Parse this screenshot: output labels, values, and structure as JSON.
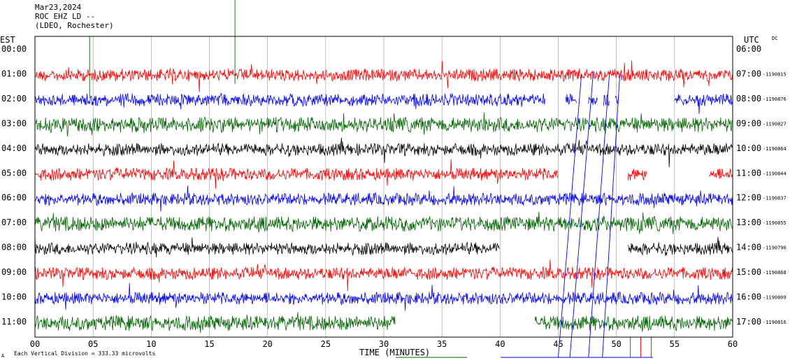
{
  "header": {
    "date": "Mar23,2024",
    "station": "ROC EHZ LD --",
    "network": "(LDEO, Rochester)"
  },
  "labels": {
    "left_zone": "EST",
    "right_zone": "UTC",
    "dc": "DC",
    "xlabel": "TIME (MINUTES)",
    "footer": "Each Vertical Division =  333.33 microvolts",
    "footer_mark": "A"
  },
  "chart_data": {
    "type": "line",
    "title": "",
    "xlabel": "TIME (MINUTES)",
    "xlim": [
      0,
      60
    ],
    "x_ticks": [
      "00",
      "05",
      "10",
      "15",
      "20",
      "25",
      "30",
      "35",
      "40",
      "45",
      "50",
      "55",
      "60"
    ],
    "grid": true,
    "colors": [
      "#ff0000",
      "#0000ff",
      "#006400",
      "#000000"
    ],
    "rows": [
      {
        "est": "00:00",
        "utc": "06:00",
        "value": "",
        "color": "",
        "segments": []
      },
      {
        "est": "01:00",
        "utc": "07:00",
        "value": "1190815",
        "color": "#ff0000",
        "segments": [
          [
            0,
            60
          ]
        ]
      },
      {
        "est": "02:00",
        "utc": "08:00",
        "value": "1190876",
        "color": "#0000ff",
        "segments": [
          [
            0,
            43.9
          ],
          [
            45.6,
            46.6
          ],
          [
            47.6,
            48.4
          ],
          [
            48.9,
            49.4
          ],
          [
            49.9,
            50.2
          ],
          [
            55,
            60
          ]
        ]
      },
      {
        "est": "03:00",
        "utc": "09:00",
        "value": "1190827",
        "color": "#006400",
        "segments": [
          [
            0,
            60
          ]
        ]
      },
      {
        "est": "04:00",
        "utc": "10:00",
        "value": "1190864",
        "color": "#000000",
        "segments": [
          [
            0,
            60
          ]
        ]
      },
      {
        "est": "05:00",
        "utc": "11:00",
        "value": "1190844",
        "color": "#ff0000",
        "segments": [
          [
            0,
            45
          ],
          [
            51,
            52.6
          ],
          [
            58,
            60
          ]
        ]
      },
      {
        "est": "06:00",
        "utc": "12:00",
        "value": "1190837",
        "color": "#0000ff",
        "segments": [
          [
            0,
            60
          ]
        ]
      },
      {
        "est": "07:00",
        "utc": "13:00",
        "value": "1190855",
        "color": "#006400",
        "segments": [
          [
            0,
            60
          ]
        ]
      },
      {
        "est": "08:00",
        "utc": "14:00",
        "value": "1190790",
        "color": "#000000",
        "segments": [
          [
            0,
            40
          ],
          [
            51,
            60
          ]
        ]
      },
      {
        "est": "09:00",
        "utc": "15:00",
        "value": "1190868",
        "color": "#ff0000",
        "segments": [
          [
            0,
            60
          ]
        ]
      },
      {
        "est": "10:00",
        "utc": "16:00",
        "value": "1190809",
        "color": "#0000ff",
        "segments": [
          [
            0,
            60
          ]
        ]
      },
      {
        "est": "11:00",
        "utc": "17:00",
        "value": "1190816",
        "color": "#006400",
        "segments": [
          [
            0,
            31
          ],
          [
            43,
            60
          ]
        ]
      }
    ]
  }
}
